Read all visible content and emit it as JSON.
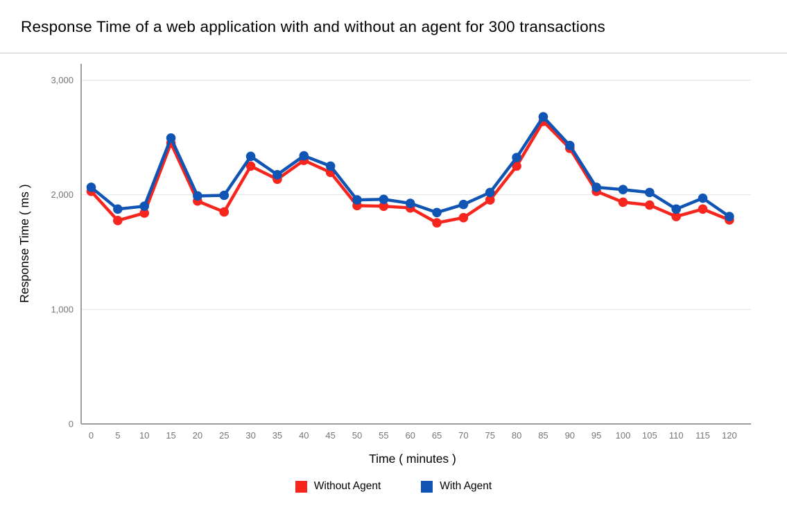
{
  "chart_data": {
    "type": "line",
    "title": "Response Time of a web application with and without an agent for 300 transactions",
    "xlabel": "Time ( minutes )",
    "ylabel": "Response Time ( ms )",
    "x": [
      0,
      5,
      10,
      15,
      20,
      25,
      30,
      35,
      40,
      45,
      50,
      55,
      60,
      65,
      70,
      75,
      80,
      85,
      90,
      95,
      100,
      105,
      110,
      115,
      120
    ],
    "series": [
      {
        "name": "Without Agent",
        "color": "#f6251d",
        "values": [
          2030,
          1775,
          1840,
          2450,
          1945,
          1850,
          2250,
          2135,
          2300,
          2195,
          1905,
          1900,
          1885,
          1755,
          1800,
          1955,
          2250,
          2640,
          2405,
          2030,
          1935,
          1910,
          1810,
          1875,
          1780
        ]
      },
      {
        "name": "With Agent",
        "color": "#1155b4",
        "values": [
          2065,
          1875,
          1900,
          2495,
          1990,
          1995,
          2335,
          2175,
          2340,
          2250,
          1955,
          1960,
          1925,
          1845,
          1915,
          2020,
          2325,
          2680,
          2430,
          2065,
          2045,
          2020,
          1875,
          1970,
          1810
        ]
      }
    ],
    "ylim": [
      0,
      3000
    ],
    "yticks": [
      {
        "value": 0,
        "label": "0"
      },
      {
        "value": 1000,
        "label": "1,000"
      },
      {
        "value": 2000,
        "label": "2,000"
      },
      {
        "value": 3000,
        "label": "3,000"
      }
    ],
    "grid": true,
    "legend_position": "bottom",
    "axis_colors": {
      "axis_line": "#9e9e9e",
      "grid_line": "#e3e3e3",
      "tick_text": "#757575",
      "axis_title_text": "#000000"
    }
  }
}
